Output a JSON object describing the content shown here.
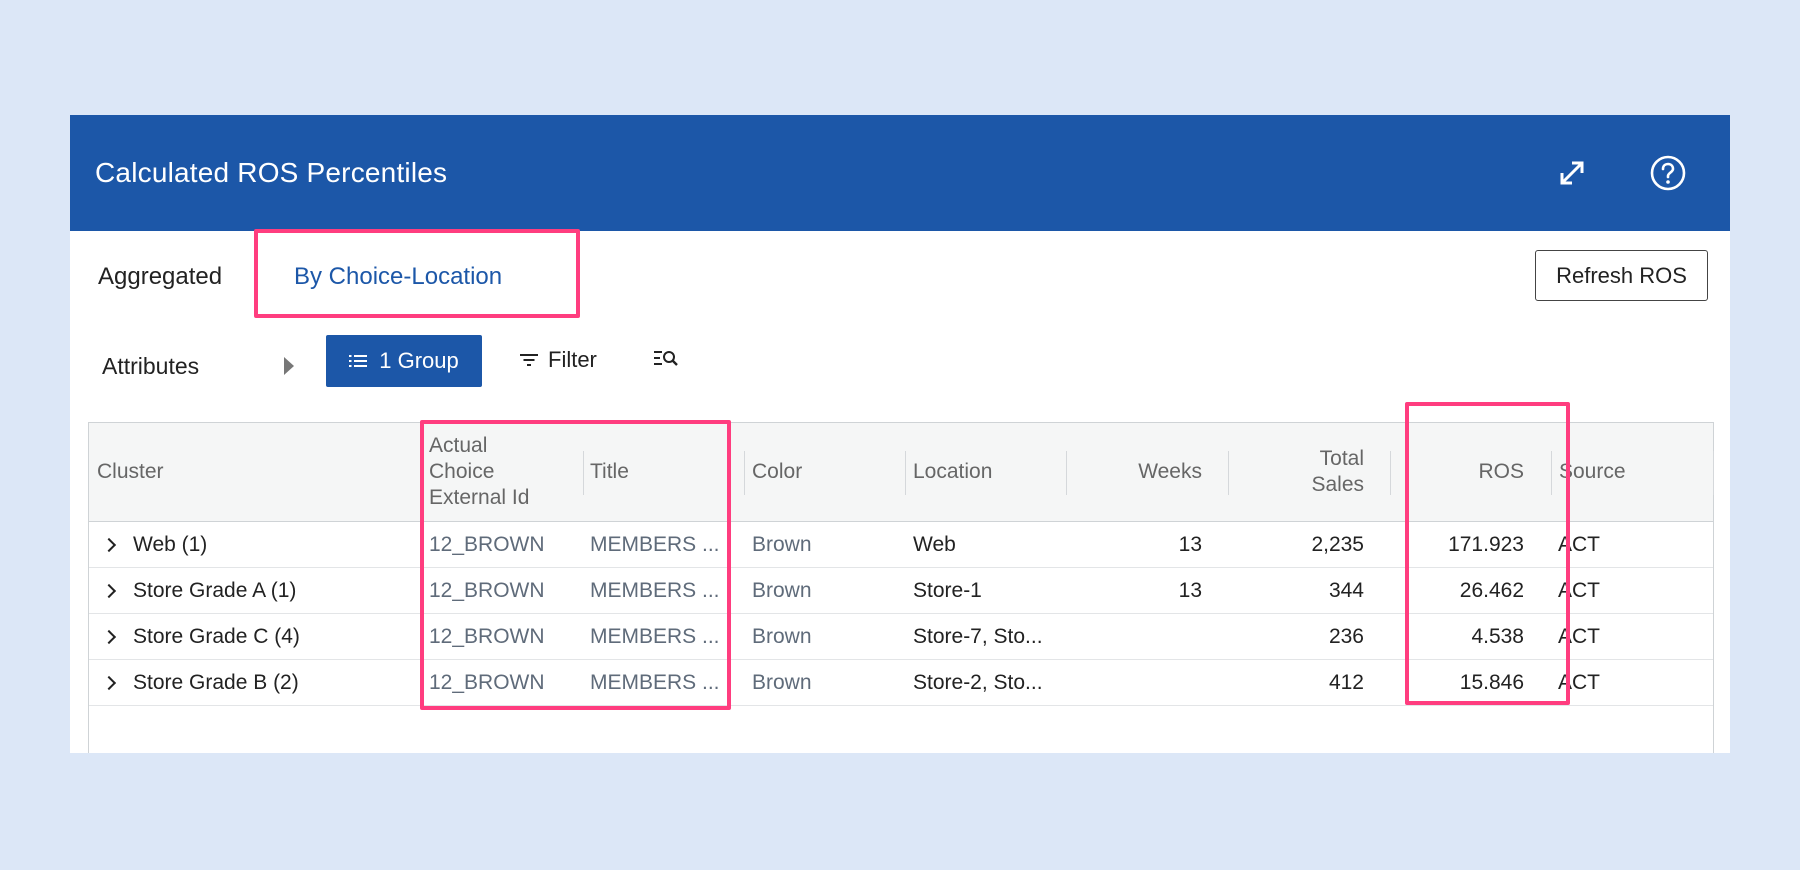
{
  "header": {
    "title": "Calculated ROS Percentiles"
  },
  "tabs": [
    {
      "label": "Aggregated",
      "active": false
    },
    {
      "label": "By Choice-Location",
      "active": true
    }
  ],
  "refresh_label": "Refresh ROS",
  "toolbar": {
    "attributes_label": "Attributes",
    "group_label": "1 Group",
    "filter_label": "Filter"
  },
  "columns": {
    "cluster": "Cluster",
    "external_id": [
      "Actual",
      "Choice",
      "External Id"
    ],
    "title": "Title",
    "color": "Color",
    "location": "Location",
    "weeks": "Weeks",
    "total_sales": [
      "Total",
      "Sales"
    ],
    "ros": "ROS",
    "source": "Source"
  },
  "rows": [
    {
      "cluster": "Web (1)",
      "external_id": "12_BROWN",
      "title": "MEMBERS ...",
      "color": "Brown",
      "location": "Web",
      "weeks": "13",
      "total_sales": "2,235",
      "ros": "171.923",
      "source": "ACT"
    },
    {
      "cluster": "Store Grade A (1)",
      "external_id": "12_BROWN",
      "title": "MEMBERS ...",
      "color": "Brown",
      "location": "Store-1",
      "weeks": "13",
      "total_sales": "344",
      "ros": "26.462",
      "source": "ACT"
    },
    {
      "cluster": "Store Grade C (4)",
      "external_id": "12_BROWN",
      "title": "MEMBERS ...",
      "color": "Brown",
      "location": "Store-7, Sto...",
      "weeks": "",
      "total_sales": "236",
      "ros": "4.538",
      "source": "ACT"
    },
    {
      "cluster": "Store Grade B (2)",
      "external_id": "12_BROWN",
      "title": "MEMBERS ...",
      "color": "Brown",
      "location": "Store-2, Sto...",
      "weeks": "",
      "total_sales": "412",
      "ros": "15.846",
      "source": "ACT"
    }
  ],
  "colors": {
    "header_bg": "#1c57a8",
    "highlight": "#ff3d7f",
    "page_bg": "#dce7f7"
  }
}
